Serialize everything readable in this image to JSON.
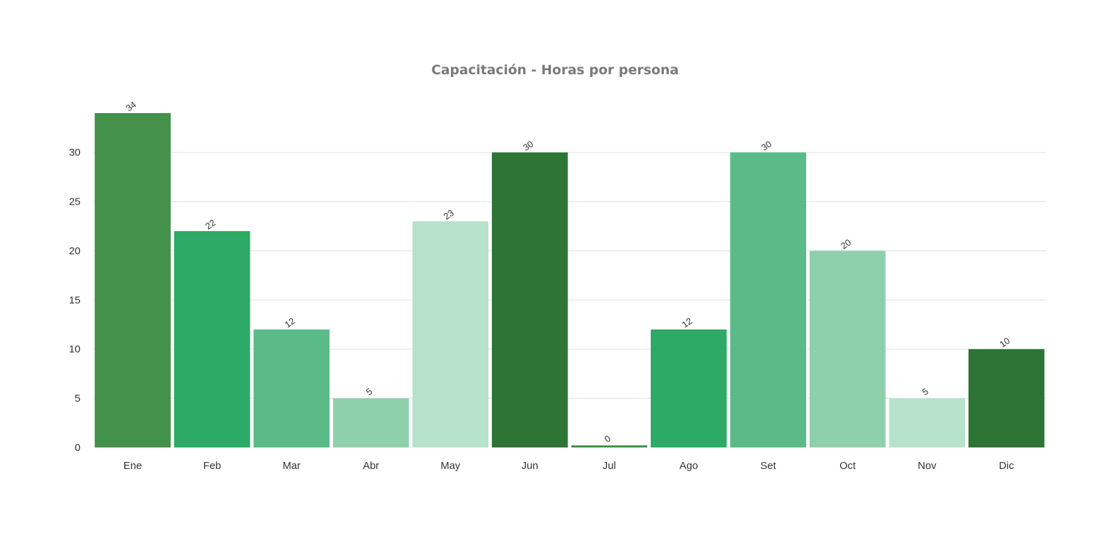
{
  "chart_data": {
    "type": "bar",
    "title": "Capacitación - Horas por persona",
    "xlabel": "",
    "ylabel": "",
    "categories": [
      "Ene",
      "Feb",
      "Mar",
      "Abr",
      "May",
      "Jun",
      "Jul",
      "Ago",
      "Set",
      "Oct",
      "Nov",
      "Dic"
    ],
    "values": [
      34,
      22,
      12,
      5,
      23,
      30,
      0,
      12,
      30,
      20,
      5,
      10
    ],
    "colors": [
      "#43914a",
      "#2daa66",
      "#5abb88",
      "#8fd0ac",
      "#b6e2c9",
      "#2e7535",
      "#43914a",
      "#2daa66",
      "#5abb88",
      "#8fd0ac",
      "#b6e2c9",
      "#2e7535"
    ],
    "ylim": [
      0,
      34
    ],
    "yticks": [
      0,
      5,
      10,
      15,
      20,
      25,
      30
    ],
    "grid": true,
    "legend": "none"
  }
}
